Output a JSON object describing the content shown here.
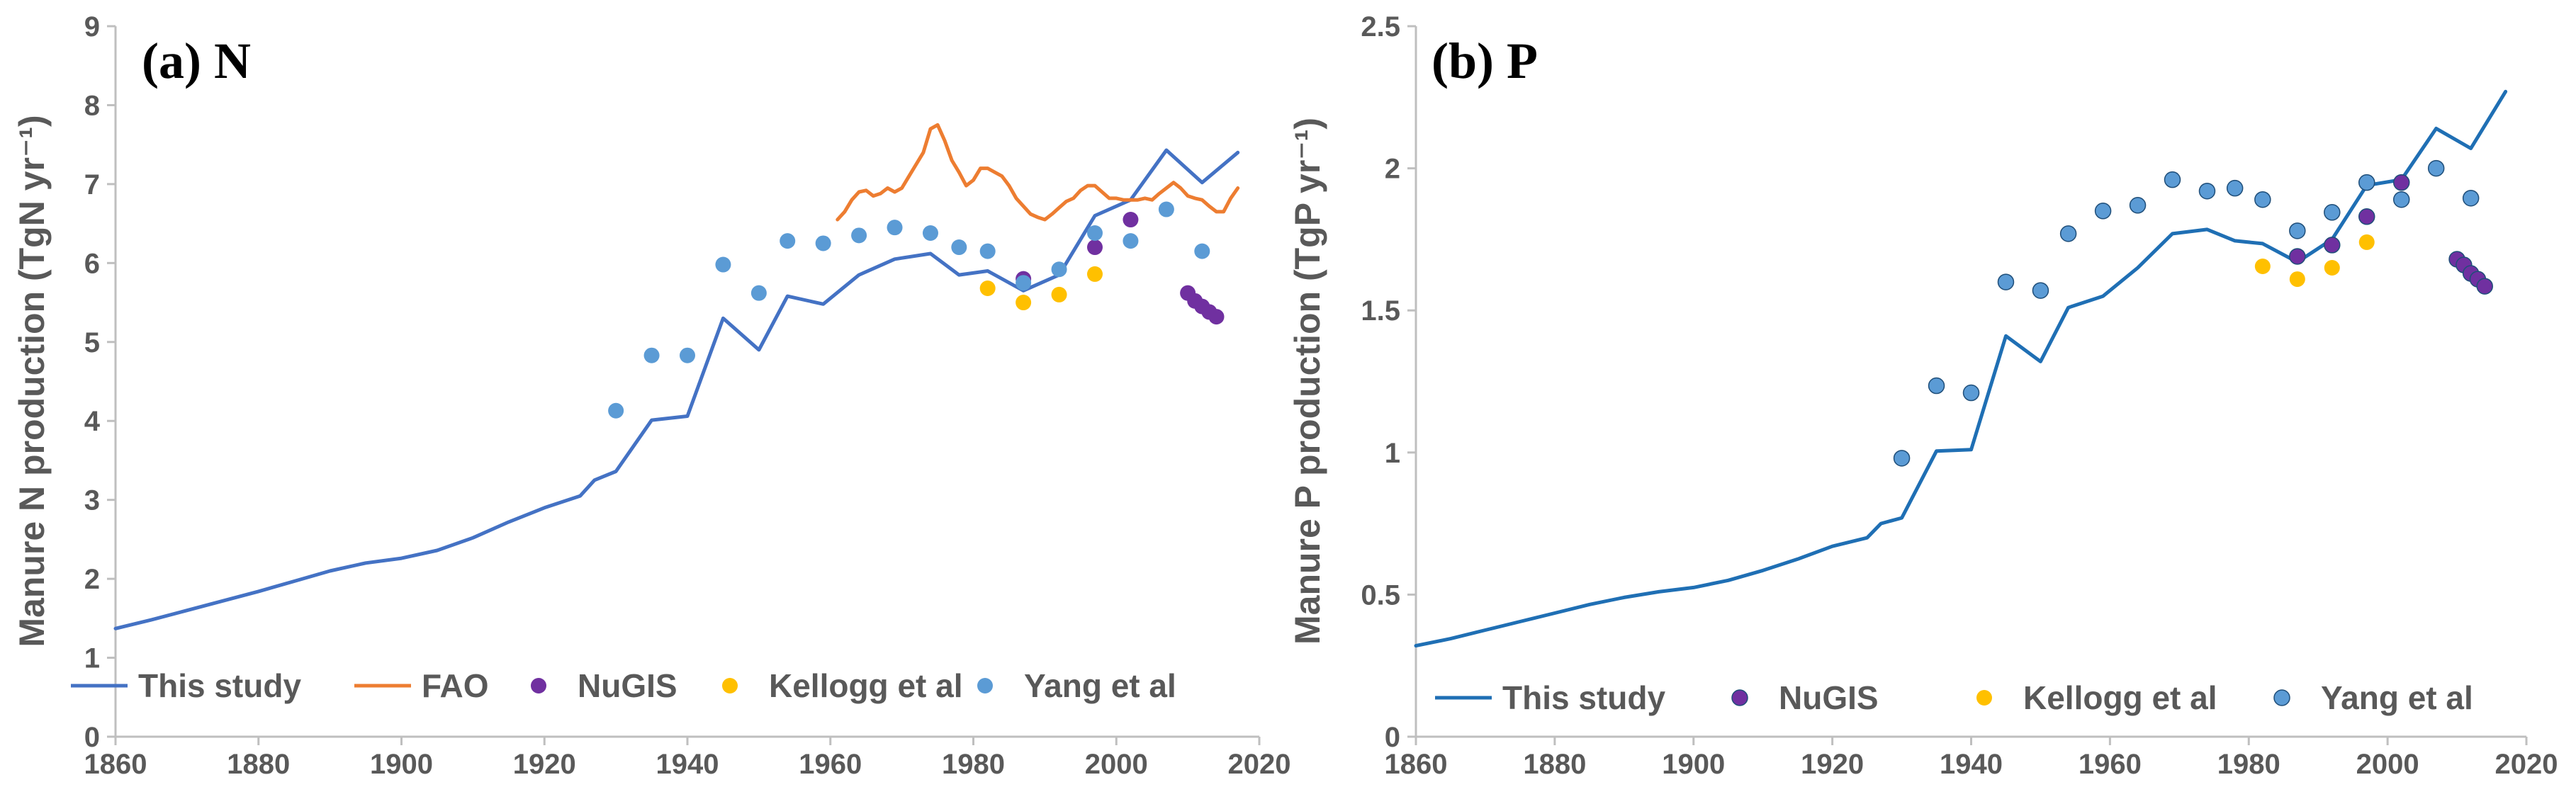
{
  "colors": {
    "this_study_a": "#4472C4",
    "this_study_b": "#1F6FB4",
    "fao": "#ED7D31",
    "nugis": "#7030A0",
    "kellogg": "#FFC000",
    "yang": "#5B9BD5",
    "axis": "#BFBFBF",
    "text": "#595959"
  },
  "chart_data": [
    {
      "type": "line",
      "panel": "a",
      "title": "(a) N",
      "ylabel": "Manure N production  (TgN yr⁻¹)",
      "xlabel": "",
      "xlim": [
        1860,
        2020
      ],
      "ylim": [
        0,
        9
      ],
      "xticks": [
        1860,
        1880,
        1900,
        1920,
        1940,
        1960,
        1980,
        2000,
        2020
      ],
      "yticks": [
        0,
        1,
        2,
        3,
        4,
        5,
        6,
        7,
        8,
        9
      ],
      "grid": false,
      "legend_position": "bottom",
      "series": [
        {
          "name": "This study",
          "kind": "line",
          "color": "#4472C4",
          "x": [
            1860,
            1865,
            1870,
            1875,
            1880,
            1885,
            1890,
            1895,
            1900,
            1905,
            1910,
            1915,
            1920,
            1925,
            1927,
            1930,
            1935,
            1940,
            1945,
            1950,
            1954,
            1959,
            1964,
            1969,
            1974,
            1978,
            1982,
            1987,
            1992,
            1997,
            2002,
            2007,
            2012,
            2017
          ],
          "y": [
            1.37,
            1.48,
            1.6,
            1.72,
            1.84,
            1.97,
            2.1,
            2.2,
            2.26,
            2.36,
            2.52,
            2.72,
            2.9,
            3.05,
            3.25,
            3.36,
            4.01,
            4.06,
            5.3,
            4.9,
            5.58,
            5.48,
            5.85,
            6.05,
            6.12,
            5.85,
            5.9,
            5.65,
            5.85,
            6.6,
            6.8,
            7.43,
            7.02,
            7.4
          ]
        },
        {
          "name": "FAO",
          "kind": "line",
          "color": "#ED7D31",
          "x": [
            1961,
            1962,
            1963,
            1964,
            1965,
            1966,
            1967,
            1968,
            1969,
            1970,
            1971,
            1972,
            1973,
            1974,
            1975,
            1976,
            1977,
            1978,
            1979,
            1980,
            1981,
            1982,
            1983,
            1984,
            1985,
            1986,
            1987,
            1988,
            1989,
            1990,
            1991,
            1992,
            1993,
            1994,
            1995,
            1996,
            1997,
            1998,
            1999,
            2000,
            2001,
            2002,
            2003,
            2004,
            2005,
            2006,
            2007,
            2008,
            2009,
            2010,
            2011,
            2012,
            2013,
            2014,
            2015,
            2016,
            2017
          ],
          "y": [
            6.55,
            6.65,
            6.8,
            6.9,
            6.92,
            6.85,
            6.88,
            6.95,
            6.9,
            6.95,
            7.1,
            7.25,
            7.4,
            7.7,
            7.75,
            7.55,
            7.3,
            7.15,
            6.98,
            7.05,
            7.2,
            7.2,
            7.15,
            7.1,
            6.98,
            6.82,
            6.72,
            6.62,
            6.58,
            6.55,
            6.62,
            6.7,
            6.78,
            6.82,
            6.92,
            6.98,
            6.98,
            6.9,
            6.82,
            6.82,
            6.8,
            6.8,
            6.8,
            6.82,
            6.8,
            6.88,
            6.95,
            7.02,
            6.95,
            6.85,
            6.82,
            6.8,
            6.72,
            6.65,
            6.65,
            6.82,
            6.95
          ]
        },
        {
          "name": "NuGIS",
          "kind": "scatter",
          "color": "#7030A0",
          "x": [
            1987,
            1997,
            2002,
            2010,
            2011,
            2012,
            2013,
            2014
          ],
          "y": [
            5.8,
            6.2,
            6.55,
            5.62,
            5.52,
            5.45,
            5.38,
            5.32
          ]
        },
        {
          "name": "Kellogg et al",
          "kind": "scatter",
          "color": "#FFC000",
          "x": [
            1982,
            1987,
            1992,
            1997
          ],
          "y": [
            5.68,
            5.5,
            5.6,
            5.86
          ]
        },
        {
          "name": "Yang et al",
          "kind": "scatter",
          "color": "#5B9BD5",
          "x": [
            1930,
            1935,
            1940,
            1945,
            1950,
            1954,
            1959,
            1964,
            1969,
            1974,
            1978,
            1982,
            1987,
            1992,
            1997,
            2002,
            2007,
            2012
          ],
          "y": [
            4.13,
            4.83,
            4.83,
            5.98,
            5.62,
            6.28,
            6.25,
            6.35,
            6.45,
            6.38,
            6.2,
            6.15,
            5.75,
            5.92,
            6.38,
            6.28,
            6.68,
            6.15
          ]
        }
      ]
    },
    {
      "type": "line",
      "panel": "b",
      "title": "(b) P",
      "ylabel": "Manure P production  (TgP yr⁻¹)",
      "xlabel": "",
      "xlim": [
        1860,
        2020
      ],
      "ylim": [
        0,
        2.5
      ],
      "xticks": [
        1860,
        1880,
        1900,
        1920,
        1940,
        1960,
        1980,
        2000,
        2020
      ],
      "yticks": [
        0,
        0.5,
        1,
        1.5,
        2,
        2.5
      ],
      "grid": false,
      "legend_position": "bottom",
      "series": [
        {
          "name": "This study",
          "kind": "line",
          "color": "#1F6FB4",
          "x": [
            1860,
            1865,
            1870,
            1875,
            1880,
            1885,
            1890,
            1895,
            1900,
            1905,
            1910,
            1915,
            1920,
            1925,
            1927,
            1930,
            1935,
            1940,
            1945,
            1950,
            1954,
            1959,
            1964,
            1969,
            1974,
            1978,
            1982,
            1987,
            1992,
            1997,
            2002,
            2007,
            2012,
            2017
          ],
          "y": [
            0.32,
            0.345,
            0.375,
            0.405,
            0.435,
            0.465,
            0.49,
            0.51,
            0.525,
            0.55,
            0.585,
            0.625,
            0.67,
            0.7,
            0.75,
            0.77,
            1.005,
            1.01,
            1.41,
            1.32,
            1.51,
            1.55,
            1.65,
            1.77,
            1.785,
            1.745,
            1.735,
            1.67,
            1.75,
            1.94,
            1.96,
            2.14,
            2.07,
            2.27
          ]
        },
        {
          "name": "NuGIS",
          "kind": "scatter",
          "color": "#7030A0",
          "x": [
            1987,
            1992,
            1997,
            2002,
            2010,
            2011,
            2012,
            2013,
            2014
          ],
          "y": [
            1.69,
            1.73,
            1.83,
            1.95,
            1.68,
            1.66,
            1.63,
            1.61,
            1.585
          ]
        },
        {
          "name": "Kellogg et al",
          "kind": "scatter",
          "color": "#FFC000",
          "x": [
            1982,
            1987,
            1992,
            1997
          ],
          "y": [
            1.655,
            1.61,
            1.65,
            1.74
          ]
        },
        {
          "name": "Yang et al",
          "kind": "scatter",
          "color": "#5B9BD5",
          "x": [
            1930,
            1935,
            1940,
            1945,
            1950,
            1954,
            1959,
            1964,
            1969,
            1974,
            1978,
            1982,
            1987,
            1992,
            1997,
            2002,
            2007,
            2012
          ],
          "y": [
            0.98,
            1.235,
            1.21,
            1.6,
            1.57,
            1.77,
            1.85,
            1.87,
            1.96,
            1.92,
            1.93,
            1.89,
            1.78,
            1.845,
            1.95,
            1.89,
            2.0,
            1.895
          ]
        }
      ]
    }
  ]
}
